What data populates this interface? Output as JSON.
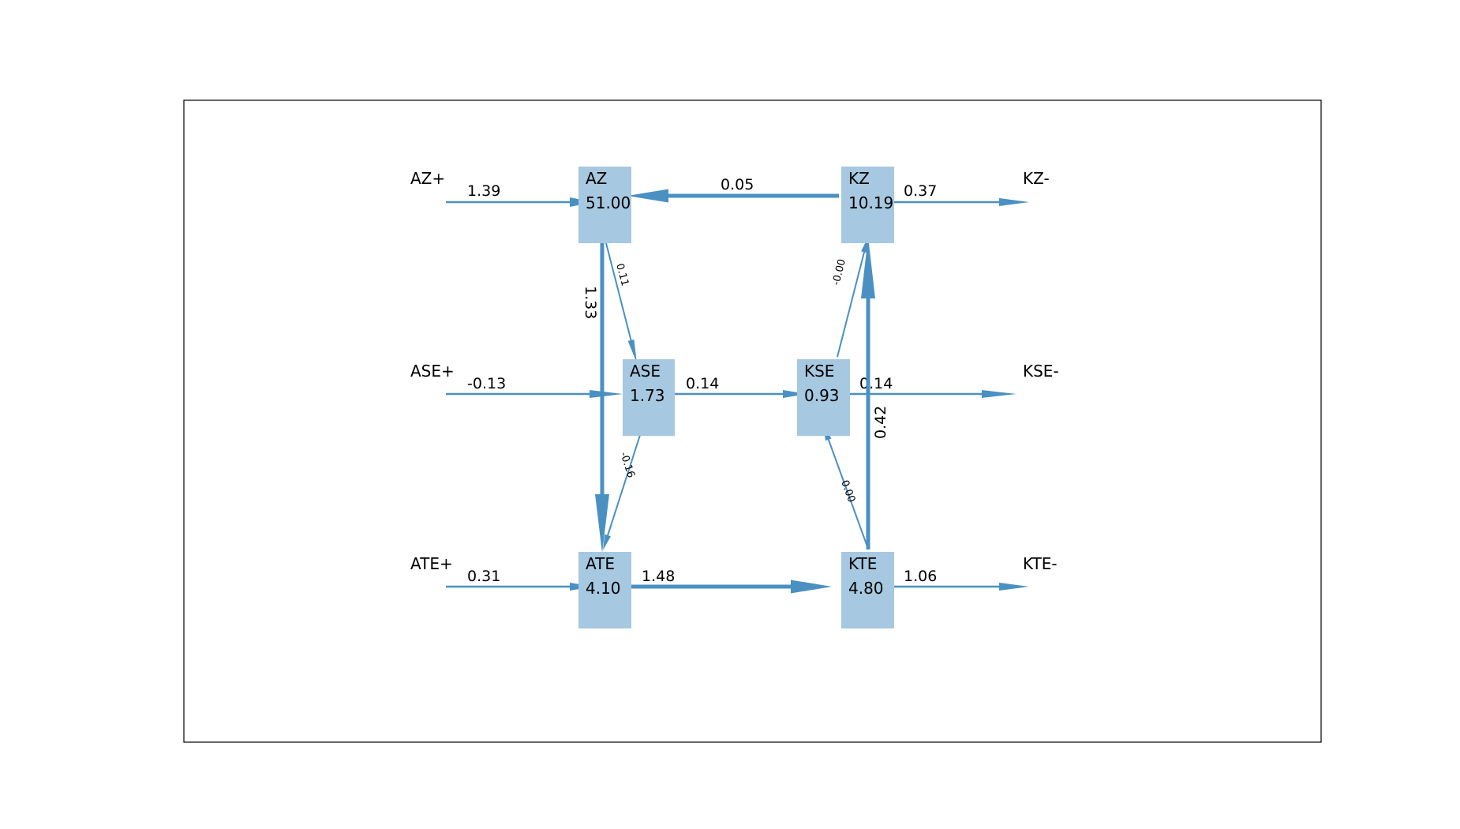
{
  "colors": {
    "node_fill": "#a6c8e1",
    "arrow": "#4a90c2",
    "frame": "#000000"
  },
  "nodes": [
    {
      "id": "AZ",
      "label": "AZ",
      "value": "51.00"
    },
    {
      "id": "KZ",
      "label": "KZ",
      "value": "10.19"
    },
    {
      "id": "ASE",
      "label": "ASE",
      "value": "1.73"
    },
    {
      "id": "KSE",
      "label": "KSE",
      "value": "0.93"
    },
    {
      "id": "ATE",
      "label": "ATE",
      "value": "4.10"
    },
    {
      "id": "KTE",
      "label": "KTE",
      "value": "4.80"
    }
  ],
  "terminals": [
    {
      "id": "AZ+",
      "label": "AZ+"
    },
    {
      "id": "ASE+",
      "label": "ASE+"
    },
    {
      "id": "ATE+",
      "label": "ATE+"
    },
    {
      "id": "KZ-",
      "label": "KZ-"
    },
    {
      "id": "KSE-",
      "label": "KSE-"
    },
    {
      "id": "KTE-",
      "label": "KTE-"
    }
  ],
  "flows": [
    {
      "id": "azplus-az",
      "from": "AZ+",
      "to": "AZ",
      "label": "1.39"
    },
    {
      "id": "kz-az",
      "from": "KZ",
      "to": "AZ",
      "label": "0.05"
    },
    {
      "id": "kz-kzminus",
      "from": "KZ",
      "to": "KZ-",
      "label": "0.37"
    },
    {
      "id": "az-ate",
      "from": "AZ",
      "to": "ATE",
      "label": "1.33"
    },
    {
      "id": "az-ase",
      "from": "AZ",
      "to": "ASE",
      "label": "0.11"
    },
    {
      "id": "kse-kz",
      "from": "KSE",
      "to": "KZ",
      "label": "-0.00"
    },
    {
      "id": "aseplus-ase",
      "from": "ASE+",
      "to": "ASE",
      "label": "-0.13"
    },
    {
      "id": "ase-kse",
      "from": "ASE",
      "to": "KSE",
      "label": "0.14"
    },
    {
      "id": "kse-kseminus",
      "from": "KSE",
      "to": "KSE-",
      "label": "0.14"
    },
    {
      "id": "kte-kz",
      "from": "KTE",
      "to": "KZ",
      "label": "0.42"
    },
    {
      "id": "ase-ate",
      "from": "ASE",
      "to": "ATE",
      "label": "-0.16"
    },
    {
      "id": "kte-kse",
      "from": "KTE",
      "to": "KSE",
      "label": "0.00"
    },
    {
      "id": "ateplus-ate",
      "from": "ATE+",
      "to": "ATE",
      "label": "0.31"
    },
    {
      "id": "ate-kte",
      "from": "ATE",
      "to": "KTE",
      "label": "1.48"
    },
    {
      "id": "kte-kteminus",
      "from": "KTE",
      "to": "KTE-",
      "label": "1.06"
    }
  ]
}
